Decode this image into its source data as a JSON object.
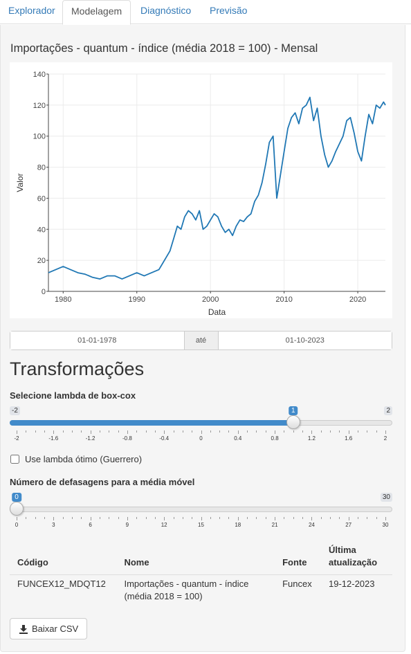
{
  "tabs": [
    {
      "label": "Explorador"
    },
    {
      "label": "Modelagem",
      "active": true
    },
    {
      "label": "Diagnóstico"
    },
    {
      "label": "Previsão"
    }
  ],
  "plot": {
    "title": "Importações - quantum - índice (média 2018 = 100) - Mensal"
  },
  "chart_data": {
    "type": "line",
    "xlabel": "Data",
    "ylabel": "Valor",
    "xlim": [
      1978.0,
      2023.75
    ],
    "ylim": [
      0,
      140
    ],
    "x_ticks": [
      1980,
      1990,
      2000,
      2010,
      2020
    ],
    "y_ticks": [
      0,
      20,
      40,
      60,
      80,
      100,
      120,
      140
    ],
    "grid": true,
    "line_color": "#1f77b4",
    "series": [
      {
        "x": [
          1978.0,
          1979.0,
          1980.0,
          1981.0,
          1982.0,
          1983.0,
          1984.0,
          1985.0,
          1986.0,
          1987.0,
          1988.0,
          1989.0,
          1990.0,
          1991.0,
          1992.0,
          1993.0,
          1994.0,
          1994.5,
          1995.0,
          1995.5,
          1996.0,
          1996.5,
          1997.0,
          1997.5,
          1998.0,
          1998.5,
          1999.0,
          1999.5,
          2000.0,
          2000.5,
          2001.0,
          2001.5,
          2002.0,
          2002.5,
          2003.0,
          2003.5,
          2004.0,
          2004.5,
          2005.0,
          2005.5,
          2006.0,
          2006.5,
          2007.0,
          2007.5,
          2008.0,
          2008.5,
          2009.0,
          2009.5,
          2010.0,
          2010.5,
          2011.0,
          2011.5,
          2012.0,
          2012.5,
          2013.0,
          2013.5,
          2014.0,
          2014.5,
          2015.0,
          2015.5,
          2016.0,
          2016.5,
          2017.0,
          2017.5,
          2018.0,
          2018.5,
          2019.0,
          2019.5,
          2020.0,
          2020.5,
          2021.0,
          2021.5,
          2022.0,
          2022.5,
          2023.0,
          2023.5,
          2023.75
        ],
        "y": [
          12,
          14,
          16,
          14,
          12,
          11,
          9,
          8,
          10,
          10,
          8,
          10,
          12,
          10,
          12,
          14,
          22,
          26,
          34,
          42,
          40,
          48,
          52,
          50,
          46,
          52,
          40,
          42,
          46,
          50,
          48,
          42,
          38,
          40,
          36,
          42,
          46,
          45,
          48,
          50,
          58,
          62,
          70,
          82,
          96,
          100,
          60,
          75,
          90,
          105,
          112,
          115,
          108,
          118,
          120,
          125,
          110,
          118,
          100,
          88,
          80,
          84,
          90,
          95,
          100,
          110,
          112,
          102,
          90,
          84,
          100,
          114,
          108,
          120,
          118,
          122,
          120
        ]
      }
    ]
  },
  "daterange": {
    "start": "01-01-1978",
    "sep": "até",
    "end": "01-10-2023"
  },
  "section_title": "Transformações",
  "lambda": {
    "label": "Selecione lambda de box-cox",
    "min_label": "-2",
    "max_label": "2",
    "value_label": "1",
    "min": -2,
    "max": 2,
    "value": 1,
    "grid_labels": [
      "-2",
      "-1.6",
      "-1.2",
      "-0.8",
      "-0.4",
      "0",
      "0.4",
      "0.8",
      "1.2",
      "1.6",
      "2"
    ]
  },
  "guerrero": {
    "label": "Use lambda ótimo (Guerrero)",
    "checked": false
  },
  "lags": {
    "label": "Número de defasagens para a média móvel",
    "min_label": "0",
    "max_label": "30",
    "value_label": "0",
    "min": 0,
    "max": 30,
    "value": 0,
    "grid_labels": [
      "0",
      "3",
      "6",
      "9",
      "12",
      "15",
      "18",
      "21",
      "24",
      "27",
      "30"
    ]
  },
  "table": {
    "headers": {
      "code": "Código",
      "name": "Nome",
      "source": "Fonte",
      "updated": "Última atualização"
    },
    "row": {
      "code": "FUNCEX12_MDQT12",
      "name": "Importações - quantum - índice (média 2018 = 100)",
      "source": "Funcex",
      "updated": "19-12-2023"
    }
  },
  "download": {
    "label": "Baixar CSV",
    "icon": "download-icon"
  }
}
